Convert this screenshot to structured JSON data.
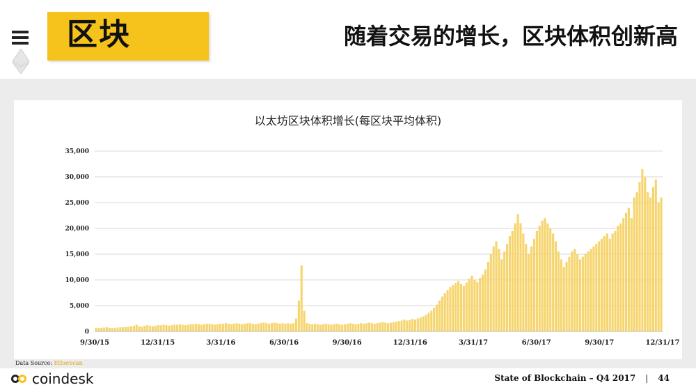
{
  "header": {
    "section_title": "区块",
    "headline": "随着交易的增长，区块体积创新高"
  },
  "icons": {
    "menu": "menu-icon",
    "ethereum": "ethereum-icon",
    "coindesk": "coindesk-logo-icon"
  },
  "colors": {
    "accent": "#f6c21c",
    "bar": "#f6d56e",
    "grid": "#d9d9d9",
    "band": "#ececec"
  },
  "chart_data": {
    "type": "bar",
    "title": "以太坊区块体积增长(每区块平均体积)",
    "xlabel": "",
    "ylabel": "",
    "ylim": [
      0,
      35000
    ],
    "yticks": [
      "0",
      "5,000",
      "10,000",
      "15,000",
      "20,000",
      "25,000",
      "30,000",
      "35,000"
    ],
    "ytick_values": [
      0,
      5000,
      10000,
      15000,
      20000,
      25000,
      30000,
      35000
    ],
    "xticks": [
      "9/30/15",
      "12/31/15",
      "3/31/16",
      "6/30/16",
      "9/30/16",
      "12/31/16",
      "3/31/17",
      "6/30/17",
      "9/30/17",
      "12/31/17"
    ],
    "grid": true,
    "legend": "none",
    "series": [
      {
        "values": [
          700,
          650,
          700,
          750,
          800,
          700,
          650,
          700,
          750,
          800,
          800,
          850,
          900,
          1000,
          1100,
          1300,
          1000,
          900,
          1100,
          1200,
          1100,
          1000,
          1100,
          1200,
          1200,
          1300,
          1200,
          1100,
          1200,
          1300,
          1300,
          1400,
          1300,
          1200,
          1300,
          1400,
          1400,
          1500,
          1400,
          1300,
          1400,
          1500,
          1500,
          1400,
          1300,
          1400,
          1500,
          1500,
          1600,
          1500,
          1400,
          1500,
          1600,
          1500,
          1400,
          1500,
          1600,
          1600,
          1500,
          1400,
          1500,
          1600,
          1700,
          1600,
          1500,
          1600,
          1700,
          1600,
          1500,
          1600,
          1500,
          1600,
          1500,
          1600,
          2500,
          6000,
          12800,
          4000,
          1600,
          1500,
          1400,
          1500,
          1400,
          1300,
          1400,
          1500,
          1400,
          1300,
          1400,
          1500,
          1400,
          1300,
          1400,
          1500,
          1600,
          1500,
          1400,
          1500,
          1600,
          1500,
          1600,
          1700,
          1600,
          1500,
          1600,
          1700,
          1800,
          1700,
          1600,
          1700,
          1800,
          1900,
          2000,
          2100,
          2300,
          2100,
          2200,
          2400,
          2300,
          2500,
          2700,
          2900,
          3200,
          3600,
          4000,
          4600,
          5200,
          6000,
          6800,
          7400,
          8000,
          8600,
          9000,
          9400,
          9800,
          9200,
          8800,
          9500,
          10200,
          10800,
          10000,
          9600,
          10400,
          11000,
          12000,
          13500,
          15000,
          16500,
          17500,
          16000,
          14000,
          15500,
          17000,
          18500,
          19500,
          21000,
          22800,
          21000,
          19000,
          17000,
          15000,
          16500,
          18000,
          19500,
          20500,
          21500,
          22000,
          21000,
          20000,
          19000,
          17500,
          15500,
          14000,
          12500,
          13500,
          14500,
          15500,
          16000,
          15000,
          14000,
          14500,
          15000,
          15500,
          16000,
          16500,
          17000,
          17500,
          18000,
          18500,
          19000,
          18000,
          19000,
          19500,
          20500,
          21000,
          22000,
          23000,
          24000,
          22000,
          26000,
          27000,
          29000,
          31500,
          30000,
          27000,
          26000,
          28000,
          29500,
          25000,
          26000
        ]
      }
    ]
  },
  "data_source": {
    "label": "Data Source:",
    "source": "Etherscan"
  },
  "footer": {
    "logo_text": "coindesk",
    "report": "State of Blockchain – Q4 2017",
    "separator": "|",
    "page": "44"
  }
}
